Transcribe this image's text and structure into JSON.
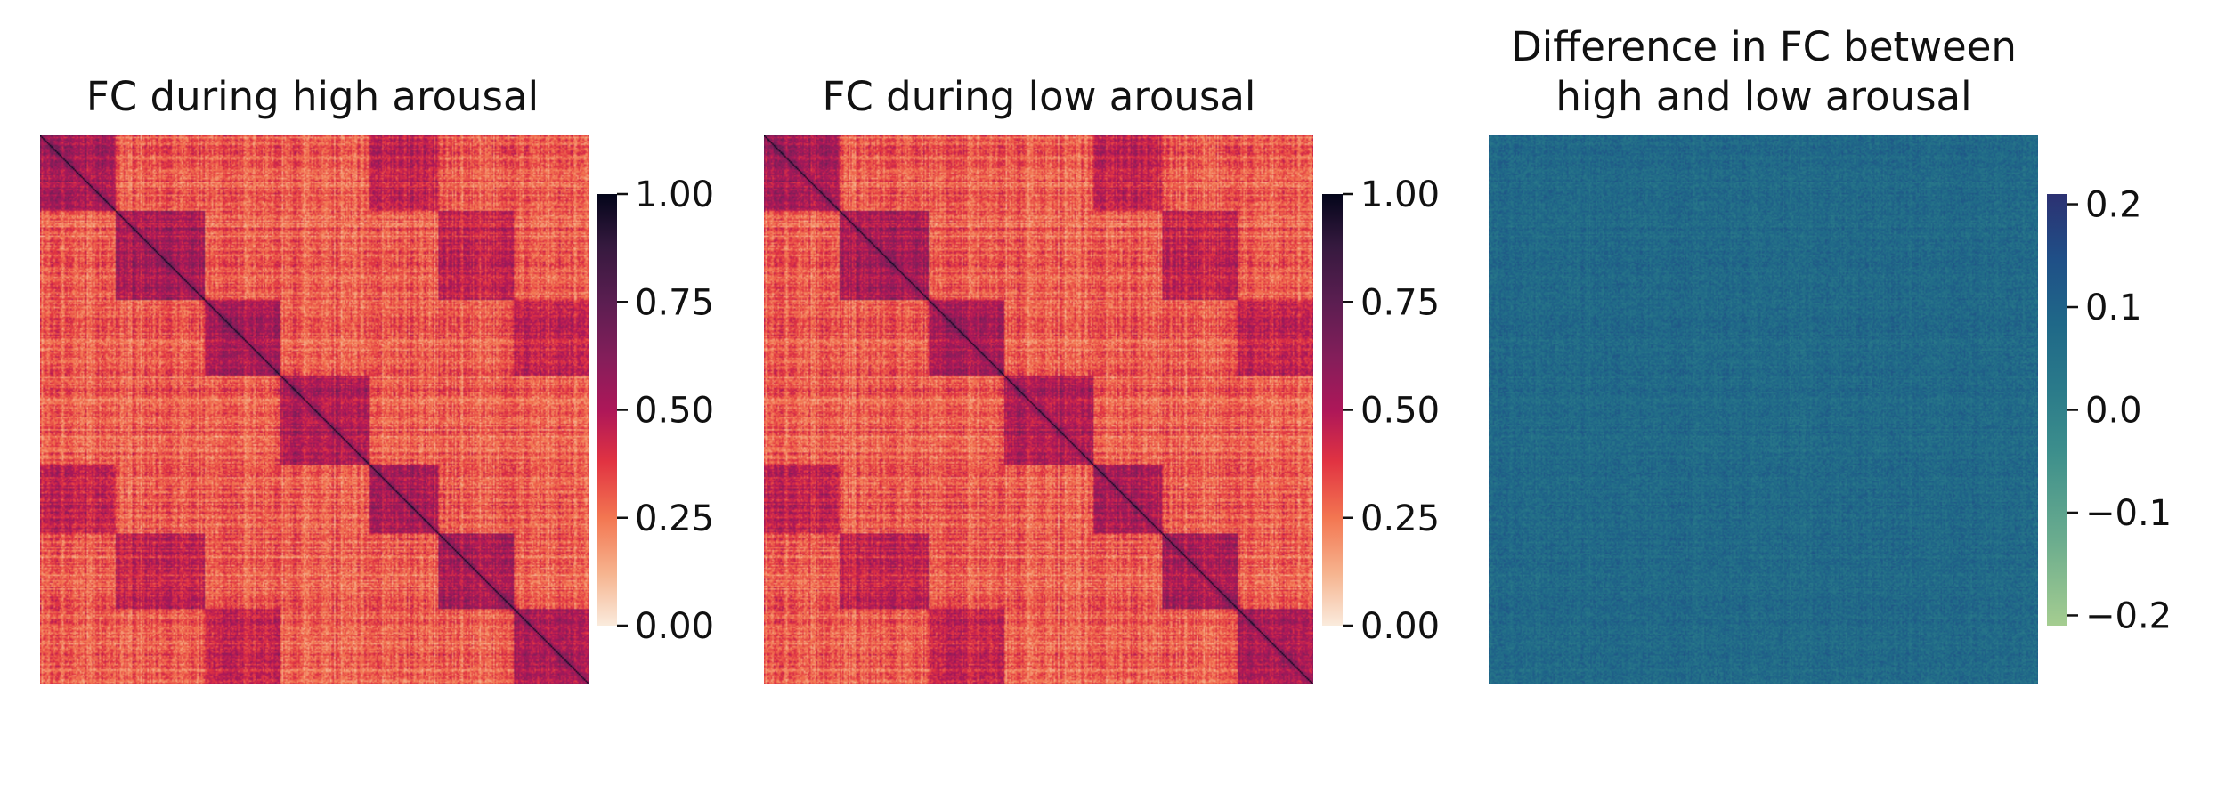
{
  "chart_data": [
    {
      "type": "heatmap",
      "title": "FC during high arousal",
      "title_lines": [
        "FC during high arousal"
      ],
      "colormap": "rocket_r",
      "matrix_size": 400,
      "vmin": 0.0,
      "vmax": 1.0,
      "colorbar_ticks": [
        0.0,
        0.25,
        0.5,
        0.75,
        1.0
      ],
      "colorbar_tick_labels": [
        "0.00",
        "0.25",
        "0.50",
        "0.75",
        "1.00"
      ],
      "diagonal_value": 1.0,
      "typical_value_range": [
        0.2,
        0.8
      ],
      "xlabel": "",
      "ylabel": "",
      "axes_visible": false
    },
    {
      "type": "heatmap",
      "title": "FC during low arousal",
      "title_lines": [
        "FC during low arousal"
      ],
      "colormap": "rocket_r",
      "matrix_size": 400,
      "vmin": 0.0,
      "vmax": 1.0,
      "colorbar_ticks": [
        0.0,
        0.25,
        0.5,
        0.75,
        1.0
      ],
      "colorbar_tick_labels": [
        "0.00",
        "0.25",
        "0.50",
        "0.75",
        "1.00"
      ],
      "diagonal_value": 1.0,
      "typical_value_range": [
        0.2,
        0.8
      ],
      "xlabel": "",
      "ylabel": "",
      "axes_visible": false
    },
    {
      "type": "heatmap",
      "title": "Difference in FC between high and low arousal",
      "title_lines": [
        "Difference in FC between",
        "high and low arousal"
      ],
      "colormap": "crest",
      "matrix_size": 400,
      "vmin": -0.21,
      "vmax": 0.21,
      "colorbar_ticks": [
        -0.2,
        -0.1,
        0.0,
        0.1,
        0.2
      ],
      "colorbar_tick_labels": [
        "−0.2",
        "−0.1",
        "0.0",
        "0.1",
        "0.2"
      ],
      "typical_value_range": [
        -0.1,
        0.15
      ],
      "xlabel": "",
      "ylabel": "",
      "axes_visible": false
    }
  ]
}
